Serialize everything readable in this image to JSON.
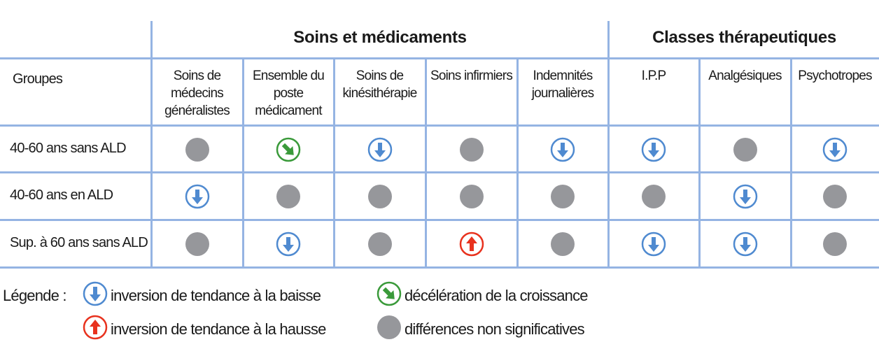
{
  "groups": {
    "soins": "Soins et médicaments",
    "classes": "Classes thérapeutiques"
  },
  "header_groupes": "Groupes",
  "columns": [
    "Soins de médecins généralistes",
    "Ensemble du poste médicament",
    "Soins de kinésithérapie",
    "Soins infirmiers",
    "Indemnités journalières",
    "I.P.P",
    "Analgésiques",
    "Psychotropes"
  ],
  "rows": [
    {
      "label": "40-60 ans sans ALD",
      "values": [
        "ns",
        "decel",
        "down",
        "ns",
        "down",
        "down",
        "ns",
        "down"
      ]
    },
    {
      "label": "40-60 ans en ALD",
      "values": [
        "down",
        "ns",
        "ns",
        "ns",
        "ns",
        "ns",
        "down",
        "ns"
      ]
    },
    {
      "label": "Sup. à 60 ans sans ALD",
      "values": [
        "ns",
        "down",
        "ns",
        "up",
        "ns",
        "down",
        "down",
        "ns"
      ]
    }
  ],
  "legend": {
    "title": "Légende :",
    "down": "inversion de tendance à la baisse",
    "up": "inversion de tendance à la hausse",
    "decel": "décélération de la croissance",
    "ns": "différences non significatives"
  },
  "colors": {
    "down": "#4f8ad0",
    "up": "#e8321e",
    "decel": "#3a9a3a",
    "ns": "#96979b",
    "grid": "#95b4e3"
  }
}
